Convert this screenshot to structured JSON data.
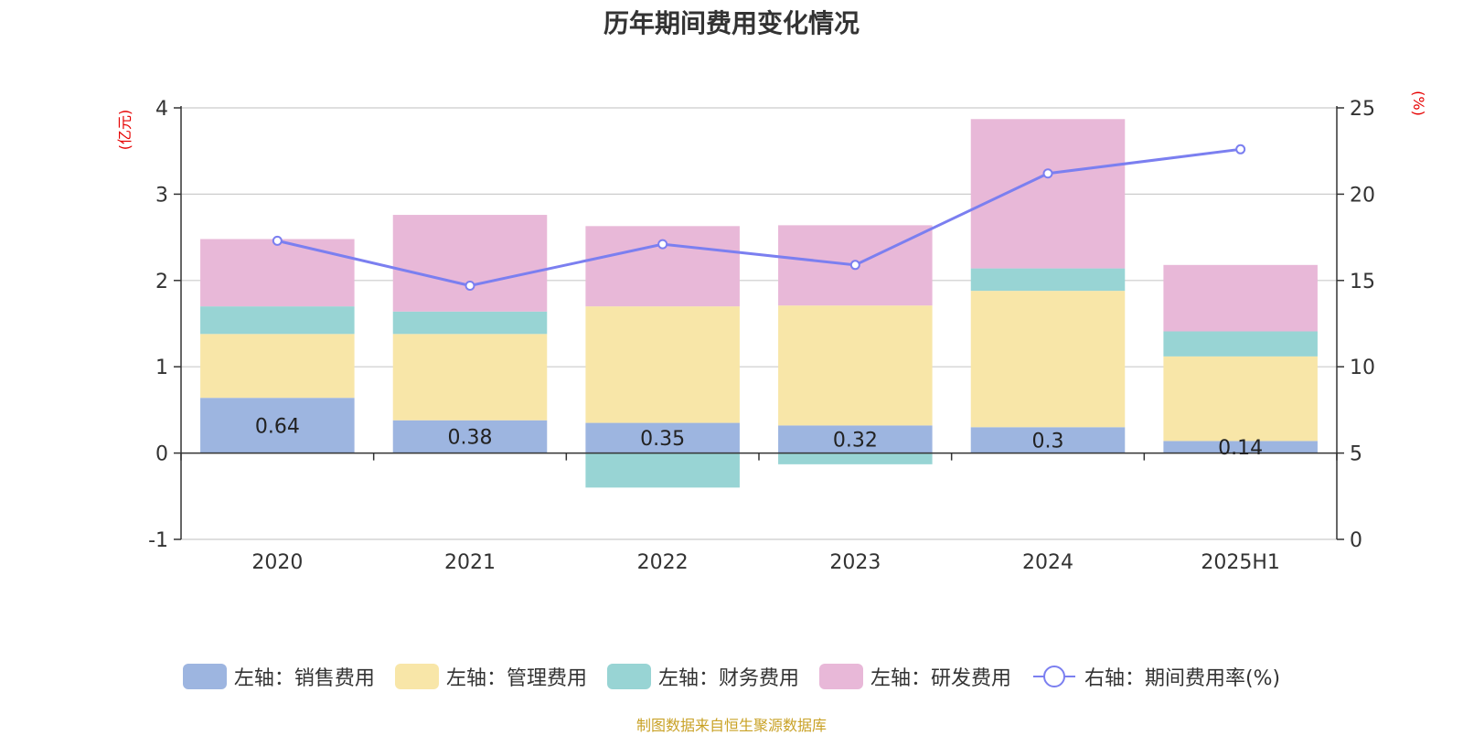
{
  "title": "历年期间费用变化情况",
  "source_note": "制图数据来自恒生聚源数据库",
  "colors": {
    "sales": "#9db5e0",
    "admin": "#f8e6a8",
    "finance": "#98d4d4",
    "rd": "#e8b8d8",
    "rate": "#7b7ff0"
  },
  "chart_data": {
    "type": "bar",
    "stacked": true,
    "categories": [
      "2020",
      "2021",
      "2022",
      "2023",
      "2024",
      "2025H1"
    ],
    "left_axis": {
      "unit": "(亿元)",
      "ylim": [
        -1,
        4
      ],
      "ticks": [
        "-1",
        "0",
        "1",
        "2",
        "3",
        "4"
      ]
    },
    "right_axis": {
      "unit": "(%)",
      "ylim": [
        0,
        25
      ],
      "ticks": [
        "0",
        "5",
        "10",
        "15",
        "20",
        "25"
      ]
    },
    "series": [
      {
        "name": "左轴：销售费用",
        "axis": "left",
        "type": "bar",
        "values": [
          0.64,
          0.38,
          0.35,
          0.32,
          0.3,
          0.14
        ],
        "labels": [
          "0.64",
          "0.38",
          "0.35",
          "0.32",
          "0.3",
          "0.14"
        ]
      },
      {
        "name": "左轴：管理费用",
        "axis": "left",
        "type": "bar",
        "values": [
          0.74,
          1.0,
          1.35,
          1.39,
          1.58,
          0.98
        ]
      },
      {
        "name": "左轴：财务费用",
        "axis": "left",
        "type": "bar",
        "values": [
          0.32,
          0.26,
          -0.4,
          -0.13,
          0.26,
          0.29
        ]
      },
      {
        "name": "左轴：研发费用",
        "axis": "left",
        "type": "bar",
        "values": [
          0.78,
          1.12,
          0.93,
          0.93,
          1.73,
          0.77
        ]
      },
      {
        "name": "右轴：期间费用率(%)",
        "axis": "right",
        "type": "line",
        "values": [
          17.3,
          14.7,
          17.1,
          15.9,
          21.2,
          22.6
        ]
      }
    ],
    "grid": true,
    "legend_position": "bottom"
  }
}
